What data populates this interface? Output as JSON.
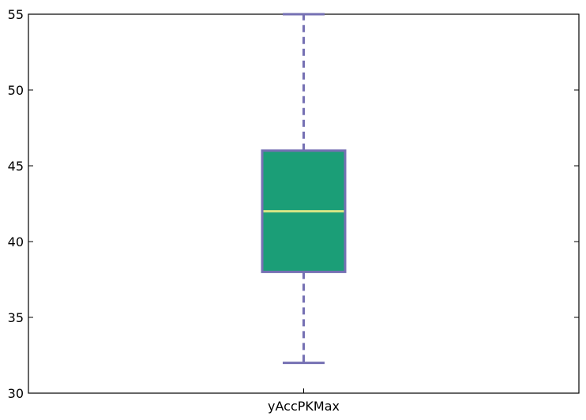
{
  "chart_data": {
    "type": "box",
    "categories": [
      "yAccPKMax"
    ],
    "series": [
      {
        "whisker_low": 32,
        "q1": 38,
        "median": 42,
        "q3": 46,
        "whisker_high": 55
      }
    ],
    "yticks": [
      30,
      35,
      40,
      45,
      50,
      55
    ],
    "ylim": [
      30,
      55
    ],
    "grid": false,
    "colors": {
      "box_fill": "#1b9e77",
      "box_edge": "#7570b3",
      "whisker": "#7570b3",
      "median": "#d6e685",
      "axis": "#000000"
    }
  }
}
